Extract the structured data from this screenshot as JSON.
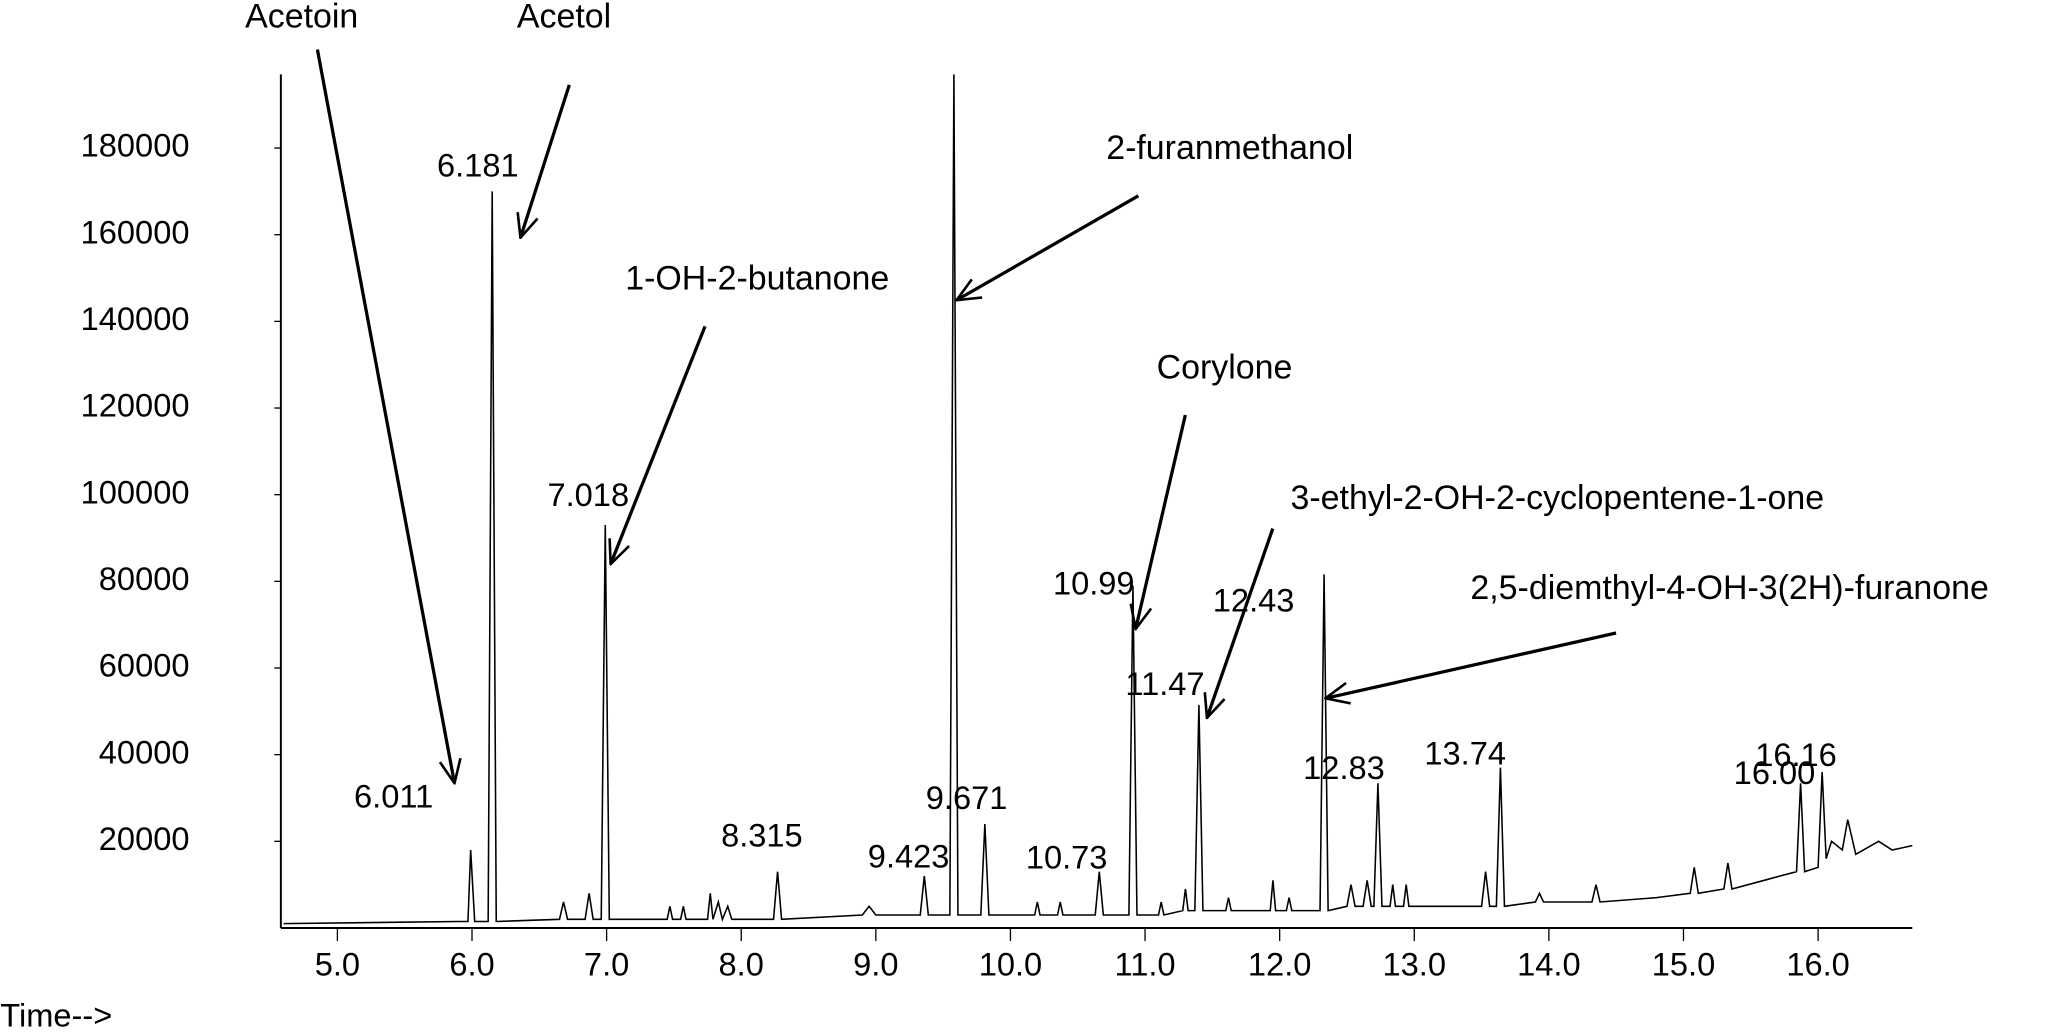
{
  "chart_data": {
    "type": "line",
    "x_label": "Time-->",
    "color": "#000000",
    "xlim": [
      4.58,
      16.7
    ],
    "xticks": [
      {
        "value": 5,
        "label": "5.0"
      },
      {
        "value": 6,
        "label": "6.0"
      },
      {
        "value": 7,
        "label": "7.0"
      },
      {
        "value": 8,
        "label": "8.0"
      },
      {
        "value": 9,
        "label": "9.0"
      },
      {
        "value": 10,
        "label": "10.0"
      },
      {
        "value": 11,
        "label": "11.0"
      },
      {
        "value": 12,
        "label": "12.0"
      },
      {
        "value": 13,
        "label": "13.0"
      },
      {
        "value": 14,
        "label": "14.0"
      },
      {
        "value": 15,
        "label": "15.0"
      },
      {
        "value": 16,
        "label": "16.0"
      }
    ],
    "ylim": [
      0,
      197000
    ],
    "yticks": [
      20000,
      40000,
      60000,
      80000,
      100000,
      120000,
      140000,
      160000,
      180000
    ],
    "x": [
      4.6,
      5.9,
      5.97,
      5.99,
      6.02,
      6.12,
      6.15,
      6.18,
      6.65,
      6.68,
      6.71,
      6.84,
      6.87,
      6.9,
      6.96,
      6.99,
      7.02,
      7.45,
      7.47,
      7.49,
      7.55,
      7.57,
      7.59,
      7.75,
      7.77,
      7.79,
      7.83,
      7.86,
      7.9,
      7.93,
      8.24,
      8.27,
      8.3,
      8.9,
      8.95,
      9.0,
      9.33,
      9.36,
      9.39,
      9.55,
      9.58,
      9.61,
      9.78,
      9.81,
      9.84,
      10.18,
      10.2,
      10.22,
      10.35,
      10.37,
      10.39,
      10.63,
      10.66,
      10.69,
      10.88,
      10.91,
      10.94,
      11.1,
      11.12,
      11.14,
      11.28,
      11.3,
      11.32,
      11.37,
      11.4,
      11.43,
      11.6,
      11.62,
      11.64,
      11.93,
      11.95,
      11.97,
      12.05,
      12.07,
      12.09,
      12.3,
      12.33,
      12.36,
      12.5,
      12.53,
      12.56,
      12.62,
      12.65,
      12.68,
      12.7,
      12.73,
      12.76,
      12.82,
      12.84,
      12.86,
      12.92,
      12.94,
      12.96,
      13.5,
      13.53,
      13.56,
      13.61,
      13.64,
      13.67,
      13.9,
      13.93,
      13.96,
      14.32,
      14.35,
      14.38,
      14.8,
      15.05,
      15.08,
      15.11,
      15.3,
      15.33,
      15.36,
      15.6,
      15.84,
      15.87,
      15.9,
      16.0,
      16.03,
      16.06,
      16.1,
      16.18,
      16.22,
      16.28,
      16.45,
      16.55,
      16.7
    ],
    "values": [
      1000,
      1500,
      1500,
      18000,
      1500,
      1500,
      170000,
      1500,
      2000,
      6000,
      2000,
      2000,
      8000,
      2000,
      2000,
      93000,
      2000,
      2000,
      5000,
      2000,
      2000,
      5000,
      2000,
      2000,
      8000,
      2000,
      6000,
      2000,
      5000,
      2000,
      2000,
      13000,
      2000,
      3000,
      5000,
      3000,
      3000,
      12000,
      3000,
      3000,
      197000,
      3000,
      3000,
      24000,
      3000,
      3000,
      6000,
      3000,
      3000,
      6000,
      3000,
      3000,
      13000,
      3000,
      3000,
      79000,
      3000,
      3000,
      6000,
      3000,
      4000,
      9000,
      4000,
      4000,
      51500,
      4000,
      4000,
      7000,
      4000,
      4000,
      11000,
      4000,
      4000,
      7000,
      4000,
      4000,
      81600,
      4000,
      5000,
      10000,
      5000,
      5000,
      11000,
      5000,
      5000,
      33400,
      5000,
      5000,
      10000,
      5000,
      5000,
      10000,
      5000,
      5000,
      13000,
      5000,
      5000,
      37000,
      5000,
      6000,
      8000,
      6000,
      6000,
      10000,
      6000,
      7000,
      8000,
      14000,
      8000,
      9000,
      15000,
      9000,
      11000,
      13000,
      33400,
      13000,
      14000,
      36000,
      16000,
      20000,
      18000,
      25000,
      17000,
      20000,
      18000,
      19000
    ],
    "peak_labels": [
      {
        "text": "6.011",
        "x": 5.99,
        "y": 18000
      },
      {
        "text": "6.181",
        "x": 6.15,
        "y": 170000
      },
      {
        "text": "7.018",
        "x": 6.99,
        "y": 93000
      },
      {
        "text": "8.315",
        "x": 8.27,
        "y": 13000
      },
      {
        "text": "9.423",
        "x": 9.36,
        "y": 12000
      },
      {
        "text": "9.671",
        "x": 9.81,
        "y": 24000
      },
      {
        "text": "10.73",
        "x": 10.66,
        "y": 13000
      },
      {
        "text": "10.99",
        "x": 10.91,
        "y": 79000
      },
      {
        "text": "11.47",
        "x": 11.4,
        "y": 51500
      },
      {
        "text": "12.43",
        "x": 12.33,
        "y": 81600
      },
      {
        "text": "12.83",
        "x": 12.73,
        "y": 33400
      },
      {
        "text": "13.74",
        "x": 13.64,
        "y": 37000
      },
      {
        "text": "16.00",
        "x": 15.87,
        "y": 33400
      },
      {
        "text": "16.16",
        "x": 16.03,
        "y": 36000
      }
    ],
    "annotations": [
      {
        "text": "Acetoin",
        "x": 5.87,
        "y": 33400
      },
      {
        "text": "Acetol",
        "x": 6.36,
        "y": 159300
      },
      {
        "text": "1-OH-2-butanone",
        "x": 7.03,
        "y": 84000
      },
      {
        "text": "2-furanmethanol",
        "x": 9.6,
        "y": 144900
      },
      {
        "text": "Corylone",
        "x": 10.93,
        "y": 69000
      },
      {
        "text": "3-ethyl-2-OH-2-cyclopentene-1-one",
        "x": 11.46,
        "y": 48500
      },
      {
        "text": "2,5-diemthyl-4-OH-3(2H)-furanone",
        "x": 12.34,
        "y": 53000
      }
    ]
  }
}
